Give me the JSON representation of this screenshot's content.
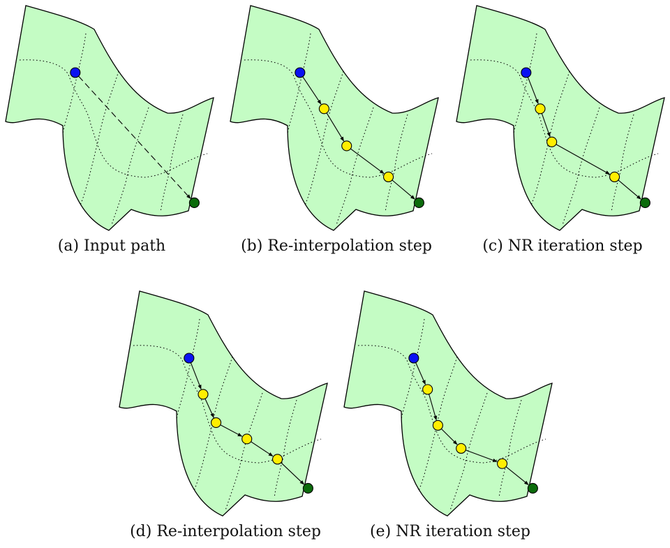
{
  "colors": {
    "surface_fill": "#c4fcc4",
    "surface_stroke": "#000000",
    "start_node": "#0a12f2",
    "end_node": "#0b6b0b",
    "intermediate_node": "#ffee00"
  },
  "panels": [
    {
      "caption": "(a) Input path",
      "path_style": "dashed",
      "start": [
        0.337,
        0.303
      ],
      "intermediates": [],
      "end": [
        0.87,
        0.868
      ]
    },
    {
      "caption": "(b) Re-interpolation step",
      "path_style": "solid-arrows",
      "start": [
        0.337,
        0.303
      ],
      "intermediates": [
        [
          0.445,
          0.46
        ],
        [
          0.546,
          0.621
        ],
        [
          0.733,
          0.756
        ]
      ],
      "end": [
        0.87,
        0.868
      ]
    },
    {
      "caption": "(c) NR iteration step",
      "path_style": "solid-arrows",
      "start": [
        0.337,
        0.303
      ],
      "intermediates": [
        [
          0.4,
          0.46
        ],
        [
          0.452,
          0.604
        ],
        [
          0.733,
          0.756
        ]
      ],
      "end": [
        0.87,
        0.868
      ]
    },
    {
      "caption": "(d) Re-interpolation step",
      "path_style": "solid-arrows",
      "start": [
        0.337,
        0.303
      ],
      "intermediates": [
        [
          0.4,
          0.46
        ],
        [
          0.458,
          0.583
        ],
        [
          0.596,
          0.654
        ],
        [
          0.733,
          0.742
        ]
      ],
      "end": [
        0.87,
        0.868
      ]
    },
    {
      "caption": "(e) NR iteration step",
      "path_style": "solid-arrows",
      "start": [
        0.337,
        0.303
      ],
      "intermediates": [
        [
          0.399,
          0.439
        ],
        [
          0.445,
          0.595
        ],
        [
          0.549,
          0.695
        ],
        [
          0.733,
          0.761
        ]
      ],
      "end": [
        0.87,
        0.868
      ]
    }
  ]
}
